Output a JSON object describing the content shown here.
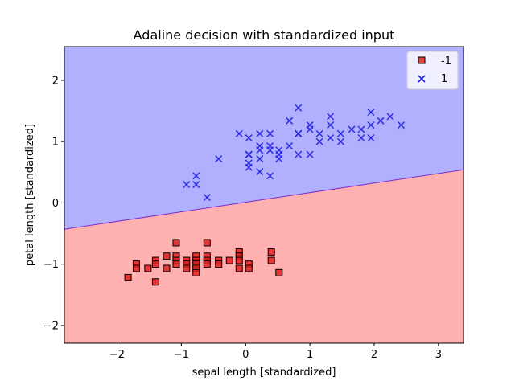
{
  "chart_data": {
    "type": "scatter",
    "title": "Adaline decision with standardized input",
    "xlabel": "sepal length [standardized]",
    "ylabel": "petal length [standardized]",
    "xlim": [
      -2.82,
      3.39
    ],
    "ylim": [
      -2.29,
      2.55
    ],
    "xticks": [
      -2,
      -1,
      0,
      1,
      2,
      3
    ],
    "yticks": [
      -2,
      -1,
      0,
      1,
      2
    ],
    "xtick_labels": [
      "−2",
      "−1",
      "0",
      "1",
      "2",
      "3"
    ],
    "ytick_labels": [
      "−2",
      "−1",
      "0",
      "1",
      "2"
    ],
    "legend_position": "top-right",
    "grid": false,
    "decision_boundary": {
      "x": [
        -2.82,
        3.39
      ],
      "y": [
        -0.43,
        0.54
      ],
      "below_region_color": "#ffb0b0",
      "above_region_color": "#b0b0ff",
      "line_color": "#7a2fd0"
    },
    "series": [
      {
        "name": "-1",
        "marker": "square",
        "color": "#e02020",
        "edge_color": "#000000",
        "points": [
          [
            -1.83,
            -1.22
          ],
          [
            -1.7,
            -1.0
          ],
          [
            -1.7,
            -1.07
          ],
          [
            -1.52,
            -1.07
          ],
          [
            -1.4,
            -0.94
          ],
          [
            -1.4,
            -1.0
          ],
          [
            -1.4,
            -1.29
          ],
          [
            -1.23,
            -0.87
          ],
          [
            -1.23,
            -1.07
          ],
          [
            -1.08,
            -0.65
          ],
          [
            -1.08,
            -0.87
          ],
          [
            -1.08,
            -0.94
          ],
          [
            -1.08,
            -1.0
          ],
          [
            -0.92,
            -0.94
          ],
          [
            -0.92,
            -1.0
          ],
          [
            -0.92,
            -1.07
          ],
          [
            -0.77,
            -0.87
          ],
          [
            -0.77,
            -0.94
          ],
          [
            -0.77,
            -1.0
          ],
          [
            -0.77,
            -1.07
          ],
          [
            -0.77,
            -1.14
          ],
          [
            -0.6,
            -0.65
          ],
          [
            -0.6,
            -0.87
          ],
          [
            -0.6,
            -0.94
          ],
          [
            -0.6,
            -1.0
          ],
          [
            -0.42,
            -0.94
          ],
          [
            -0.42,
            -1.0
          ],
          [
            -0.25,
            -0.94
          ],
          [
            -0.1,
            -0.8
          ],
          [
            -0.1,
            -0.87
          ],
          [
            -0.1,
            -0.94
          ],
          [
            -0.1,
            -1.07
          ],
          [
            0.05,
            -1.0
          ],
          [
            0.05,
            -1.07
          ],
          [
            0.4,
            -0.8
          ],
          [
            0.4,
            -0.94
          ],
          [
            0.52,
            -1.14
          ]
        ]
      },
      {
        "name": "1",
        "marker": "x",
        "color": "#2020e0",
        "points": [
          [
            -0.92,
            0.3
          ],
          [
            -0.77,
            0.3
          ],
          [
            -0.77,
            0.44
          ],
          [
            -0.6,
            0.09
          ],
          [
            -0.42,
            0.72
          ],
          [
            -0.1,
            1.13
          ],
          [
            0.05,
            0.58
          ],
          [
            0.05,
            0.65
          ],
          [
            0.05,
            0.79
          ],
          [
            0.05,
            0.79
          ],
          [
            0.05,
            1.06
          ],
          [
            0.22,
            0.51
          ],
          [
            0.22,
            0.72
          ],
          [
            0.22,
            0.86
          ],
          [
            0.22,
            0.93
          ],
          [
            0.22,
            1.13
          ],
          [
            0.38,
            0.44
          ],
          [
            0.38,
            0.86
          ],
          [
            0.38,
            0.93
          ],
          [
            0.38,
            1.13
          ],
          [
            0.52,
            0.72
          ],
          [
            0.52,
            0.79
          ],
          [
            0.52,
            0.86
          ],
          [
            0.68,
            0.93
          ],
          [
            0.68,
            1.34
          ],
          [
            0.82,
            0.79
          ],
          [
            0.82,
            1.13
          ],
          [
            0.82,
            1.13
          ],
          [
            0.82,
            1.55
          ],
          [
            1.0,
            0.79
          ],
          [
            1.0,
            1.2
          ],
          [
            1.0,
            1.27
          ],
          [
            1.15,
            1.0
          ],
          [
            1.15,
            1.13
          ],
          [
            1.32,
            1.06
          ],
          [
            1.32,
            1.27
          ],
          [
            1.32,
            1.41
          ],
          [
            1.48,
            1.0
          ],
          [
            1.48,
            1.13
          ],
          [
            1.65,
            1.2
          ],
          [
            1.8,
            1.06
          ],
          [
            1.8,
            1.2
          ],
          [
            1.95,
            1.06
          ],
          [
            1.95,
            1.27
          ],
          [
            1.95,
            1.48
          ],
          [
            2.1,
            1.34
          ],
          [
            2.25,
            1.41
          ],
          [
            2.42,
            1.27
          ]
        ]
      }
    ]
  }
}
